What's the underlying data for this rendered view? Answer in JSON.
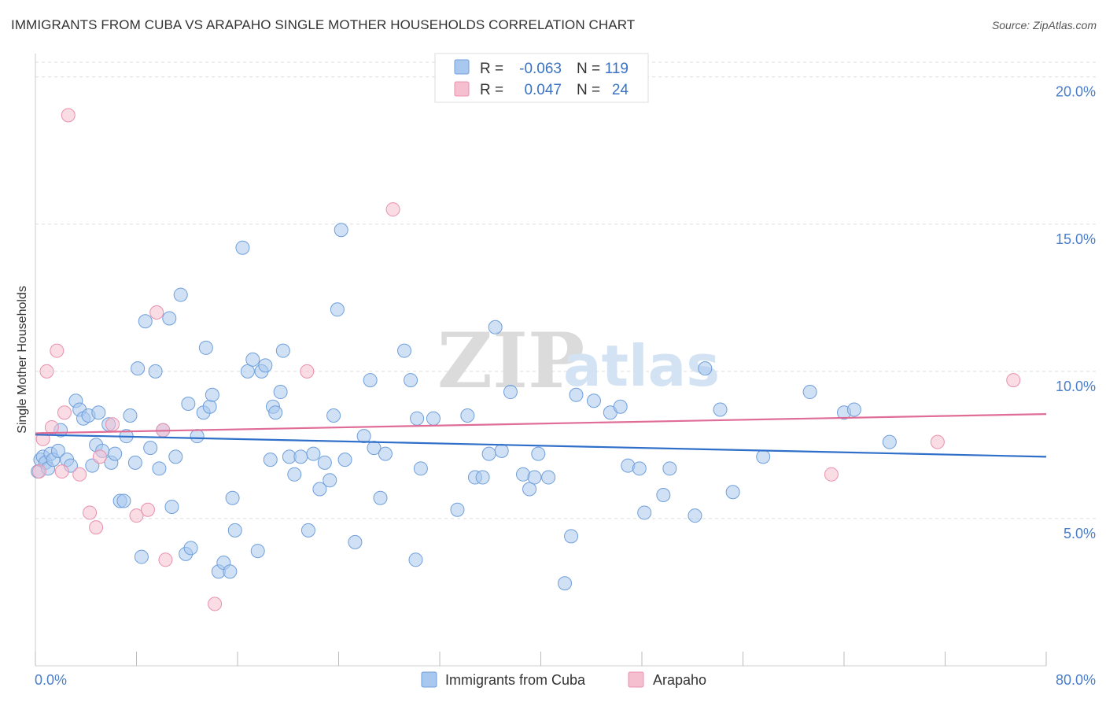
{
  "title": "IMMIGRANTS FROM CUBA VS ARAPAHO SINGLE MOTHER HOUSEHOLDS CORRELATION CHART",
  "source": "Source: ZipAtlas.com",
  "watermark": {
    "zip": "ZIP",
    "atlas": "atlas"
  },
  "colors": {
    "cuba_fill": "#a9c8ef",
    "cuba_stroke": "#6f9fda",
    "cuba_line": "#2f6fc9",
    "arapaho_fill": "#f6bfd0",
    "arapaho_stroke": "#e990ad",
    "arapaho_line": "#e06d97",
    "grid": "#dddddd",
    "axis_tick": "#4a7ecb"
  },
  "legend": {
    "r_label": "R =",
    "n_label": "N =",
    "rows": [
      {
        "series": "Immigrants from Cuba",
        "r": "-0.063",
        "n": "119"
      },
      {
        "series": "Arapaho",
        "r": "0.047",
        "n": "24"
      }
    ]
  },
  "chart_data": {
    "type": "scatter",
    "title": "IMMIGRANTS FROM CUBA VS ARAPAHO SINGLE MOTHER HOUSEHOLDS CORRELATION CHART",
    "xlabel": "",
    "ylabel": "Single Mother Households",
    "xlim": [
      0,
      80
    ],
    "ylim": [
      0,
      20.5
    ],
    "x_tick_labels": [
      "0.0%",
      "80.0%"
    ],
    "y_ticks": [
      5,
      10,
      15,
      20
    ],
    "y_tick_labels": [
      "5.0%",
      "10.0%",
      "15.0%",
      "20.0%"
    ],
    "legend": [
      "Immigrants from Cuba",
      "Arapaho"
    ],
    "series": [
      {
        "name": "Immigrants from Cuba",
        "trend": {
          "x": [
            0,
            80
          ],
          "y": [
            7.85,
            7.1
          ]
        },
        "points": [
          [
            0.2,
            6.6
          ],
          [
            0.4,
            7.0
          ],
          [
            0.6,
            7.1
          ],
          [
            0.8,
            6.9
          ],
          [
            1.0,
            6.7
          ],
          [
            1.2,
            7.2
          ],
          [
            1.4,
            7.0
          ],
          [
            1.8,
            7.3
          ],
          [
            2.0,
            8.0
          ],
          [
            2.5,
            7.0
          ],
          [
            2.8,
            6.8
          ],
          [
            3.2,
            9.0
          ],
          [
            3.5,
            8.7
          ],
          [
            3.8,
            8.4
          ],
          [
            4.2,
            8.5
          ],
          [
            4.5,
            6.8
          ],
          [
            4.8,
            7.5
          ],
          [
            5.0,
            8.6
          ],
          [
            5.3,
            7.3
          ],
          [
            5.8,
            8.2
          ],
          [
            6.0,
            6.9
          ],
          [
            6.3,
            7.2
          ],
          [
            6.7,
            5.6
          ],
          [
            7.0,
            5.6
          ],
          [
            7.2,
            7.8
          ],
          [
            7.5,
            8.5
          ],
          [
            7.9,
            6.9
          ],
          [
            8.1,
            10.1
          ],
          [
            8.4,
            3.7
          ],
          [
            8.7,
            11.7
          ],
          [
            9.1,
            7.4
          ],
          [
            9.5,
            10.0
          ],
          [
            9.8,
            6.7
          ],
          [
            10.1,
            8.0
          ],
          [
            10.6,
            11.8
          ],
          [
            10.8,
            5.4
          ],
          [
            11.1,
            7.1
          ],
          [
            11.5,
            12.6
          ],
          [
            11.9,
            3.8
          ],
          [
            12.1,
            8.9
          ],
          [
            12.3,
            4.0
          ],
          [
            12.8,
            7.8
          ],
          [
            13.3,
            8.6
          ],
          [
            13.5,
            10.8
          ],
          [
            13.8,
            8.8
          ],
          [
            14.0,
            9.2
          ],
          [
            14.5,
            3.2
          ],
          [
            14.9,
            3.5
          ],
          [
            15.4,
            3.2
          ],
          [
            15.6,
            5.7
          ],
          [
            15.8,
            4.6
          ],
          [
            16.4,
            14.2
          ],
          [
            16.8,
            10.0
          ],
          [
            17.2,
            10.4
          ],
          [
            17.6,
            3.9
          ],
          [
            17.9,
            10.0
          ],
          [
            18.2,
            10.2
          ],
          [
            18.6,
            7.0
          ],
          [
            18.8,
            8.8
          ],
          [
            19.0,
            8.6
          ],
          [
            19.4,
            9.3
          ],
          [
            19.6,
            10.7
          ],
          [
            20.1,
            7.1
          ],
          [
            20.5,
            6.5
          ],
          [
            21.0,
            7.1
          ],
          [
            21.6,
            4.6
          ],
          [
            22.0,
            7.2
          ],
          [
            22.5,
            6.0
          ],
          [
            22.9,
            6.9
          ],
          [
            23.3,
            6.3
          ],
          [
            23.6,
            8.5
          ],
          [
            23.9,
            12.1
          ],
          [
            24.2,
            14.8
          ],
          [
            24.5,
            7.0
          ],
          [
            25.3,
            4.2
          ],
          [
            26.0,
            7.8
          ],
          [
            26.5,
            9.7
          ],
          [
            26.8,
            7.4
          ],
          [
            27.3,
            5.7
          ],
          [
            27.7,
            7.2
          ],
          [
            29.2,
            10.7
          ],
          [
            29.7,
            9.7
          ],
          [
            30.1,
            3.6
          ],
          [
            30.2,
            8.4
          ],
          [
            30.5,
            6.7
          ],
          [
            31.5,
            8.4
          ],
          [
            33.4,
            5.3
          ],
          [
            34.2,
            8.5
          ],
          [
            34.8,
            6.4
          ],
          [
            35.4,
            6.4
          ],
          [
            35.9,
            7.2
          ],
          [
            36.4,
            11.5
          ],
          [
            36.9,
            7.3
          ],
          [
            37.6,
            9.3
          ],
          [
            38.6,
            6.5
          ],
          [
            39.1,
            6.0
          ],
          [
            39.5,
            6.4
          ],
          [
            39.8,
            7.2
          ],
          [
            40.6,
            6.4
          ],
          [
            41.9,
            2.8
          ],
          [
            42.4,
            4.4
          ],
          [
            42.8,
            9.2
          ],
          [
            44.2,
            9.0
          ],
          [
            45.5,
            8.6
          ],
          [
            46.3,
            8.8
          ],
          [
            46.9,
            6.8
          ],
          [
            47.8,
            6.7
          ],
          [
            48.2,
            5.2
          ],
          [
            49.7,
            5.8
          ],
          [
            50.2,
            6.7
          ],
          [
            52.2,
            5.1
          ],
          [
            53.0,
            10.1
          ],
          [
            54.2,
            8.7
          ],
          [
            55.2,
            5.9
          ],
          [
            57.6,
            7.1
          ],
          [
            61.3,
            9.3
          ],
          [
            64.0,
            8.6
          ],
          [
            64.8,
            8.7
          ],
          [
            67.6,
            7.6
          ]
        ]
      },
      {
        "name": "Arapaho",
        "trend": {
          "x": [
            0,
            80
          ],
          "y": [
            7.9,
            8.55
          ]
        },
        "points": [
          [
            0.3,
            6.6
          ],
          [
            0.6,
            7.7
          ],
          [
            0.9,
            10.0
          ],
          [
            1.3,
            8.1
          ],
          [
            1.7,
            10.7
          ],
          [
            2.1,
            6.6
          ],
          [
            2.3,
            8.6
          ],
          [
            2.6,
            18.7
          ],
          [
            3.5,
            6.5
          ],
          [
            4.3,
            5.2
          ],
          [
            4.8,
            4.7
          ],
          [
            5.1,
            7.1
          ],
          [
            6.1,
            8.2
          ],
          [
            8.0,
            5.1
          ],
          [
            8.9,
            5.3
          ],
          [
            9.6,
            12.0
          ],
          [
            10.1,
            8.0
          ],
          [
            10.3,
            3.6
          ],
          [
            14.2,
            2.1
          ],
          [
            21.5,
            10.0
          ],
          [
            28.3,
            15.5
          ],
          [
            63.0,
            6.5
          ],
          [
            71.4,
            7.6
          ],
          [
            77.4,
            9.7
          ]
        ]
      }
    ]
  }
}
